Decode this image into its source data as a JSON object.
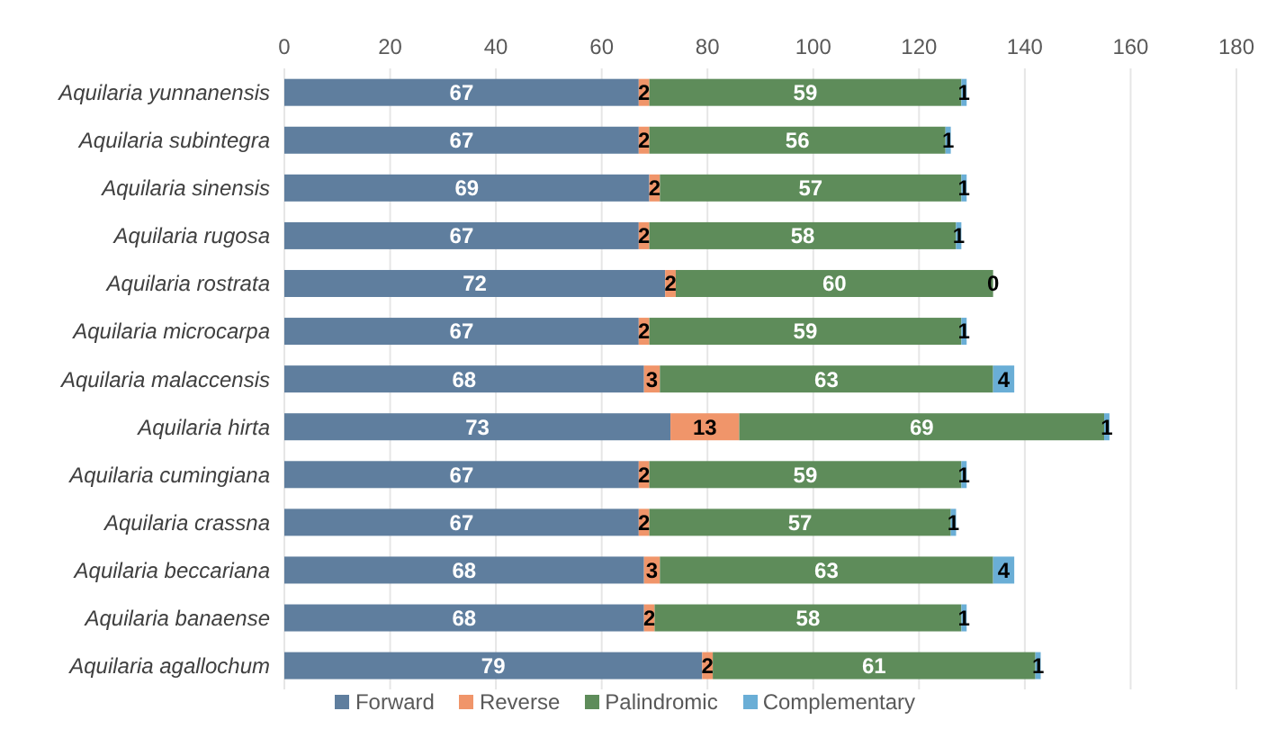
{
  "chart_data": {
    "type": "bar",
    "orientation": "horizontal",
    "stacked": true,
    "data_labels": true,
    "grid": "x",
    "legend": "bottom",
    "categories": [
      "Aquilaria yunnanensis",
      "Aquilaria subintegra",
      "Aquilaria sinensis",
      "Aquilaria rugosa",
      "Aquilaria rostrata",
      "Aquilaria microcarpa",
      "Aquilaria malaccensis",
      "Aquilaria hirta",
      "Aquilaria cumingiana",
      "Aquilaria crassna",
      "Aquilaria beccariana",
      "Aquilaria banaense",
      "Aquilaria agallochum"
    ],
    "series": [
      {
        "name": "Forward",
        "color": "#5f7e9e",
        "values": [
          67,
          67,
          69,
          67,
          72,
          67,
          68,
          73,
          67,
          67,
          68,
          68,
          79
        ]
      },
      {
        "name": "Reverse",
        "color": "#f0956a",
        "values": [
          2,
          2,
          2,
          2,
          2,
          2,
          3,
          13,
          2,
          2,
          3,
          2,
          2
        ]
      },
      {
        "name": "Palindromic",
        "color": "#5e8c5a",
        "values": [
          59,
          56,
          57,
          58,
          60,
          59,
          63,
          69,
          59,
          57,
          63,
          58,
          61
        ]
      },
      {
        "name": "Complementary",
        "color": "#6aaed6",
        "values": [
          1,
          1,
          1,
          1,
          0,
          1,
          4,
          1,
          1,
          1,
          4,
          1,
          1
        ]
      }
    ],
    "xlim": [
      0,
      180
    ],
    "xticks": [
      0,
      20,
      40,
      60,
      80,
      100,
      120,
      140,
      160,
      180
    ]
  }
}
